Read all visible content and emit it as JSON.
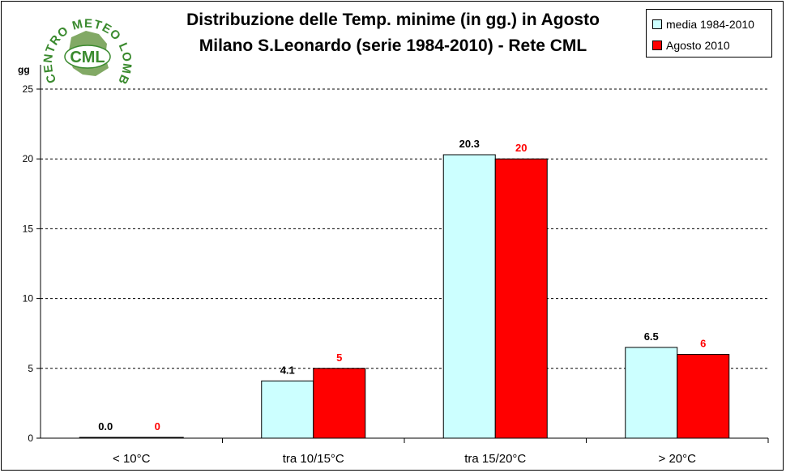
{
  "chart_data": {
    "type": "bar",
    "title_line1": "Distribuzione delle Temp. minime (in gg.) in Agosto",
    "title_line2": "Milano S.Leonardo (serie 1984-2010) - Rete CML",
    "ylabel": "gg",
    "ylim": [
      0,
      25
    ],
    "yticks": [
      "0",
      "5",
      "10",
      "15",
      "20",
      "25"
    ],
    "grid": true,
    "legend_position": "top-right",
    "categories": [
      "< 10°C",
      "tra 10/15°C",
      "tra 15/20°C",
      "> 20°C"
    ],
    "series": [
      {
        "name": "media 1984-2010",
        "color": "#ccffff",
        "label_color": "#000000",
        "values": [
          0.0,
          4.1,
          20.3,
          6.5
        ],
        "labels": [
          "0.0",
          "4.1",
          "20.3",
          "6.5"
        ]
      },
      {
        "name": "Agosto 2010",
        "color": "#ff0000",
        "label_color": "#ff0000",
        "values": [
          0,
          5,
          20,
          6
        ],
        "labels": [
          "0",
          "5",
          "20",
          "6"
        ]
      }
    ]
  },
  "logo": {
    "arc_text": "CENTRO METEO LOMBARDO",
    "center_text": "CML",
    "color": "#3a8a2e"
  }
}
